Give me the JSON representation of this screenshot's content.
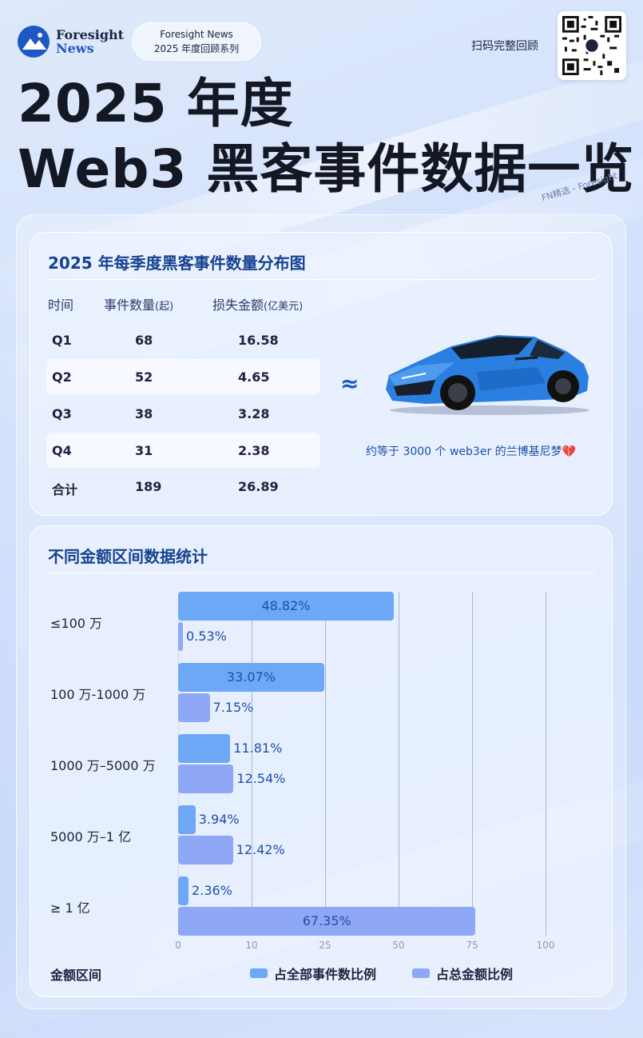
{
  "header": {
    "brand_line1": "Foresight",
    "brand_line2": "News",
    "series_line1": "Foresight News",
    "series_line2": "2025 年度回顾系列",
    "scan_text": "扫码完整回顾",
    "title_line1": "2025 年度",
    "title_line2": "Web3 黑客事件数据一览",
    "watermark": "FN精选 - Foresight"
  },
  "colors": {
    "accent": "#1e58c4",
    "title_blue": "#16428f",
    "series1": "#6da8f7",
    "series2": "#8fa8f5"
  },
  "quarterly": {
    "title": "2025 年每季度黑客事件数量分布图",
    "headers": {
      "time": "时间",
      "count": "事件数量",
      "count_unit": "(起)",
      "loss": "损失金额",
      "loss_unit": "(亿美元)"
    },
    "rows": [
      {
        "q": "Q1",
        "count": "68",
        "loss": "16.58"
      },
      {
        "q": "Q2",
        "count": "52",
        "loss": "4.65"
      },
      {
        "q": "Q3",
        "count": "38",
        "loss": "3.28"
      },
      {
        "q": "Q4",
        "count": "31",
        "loss": "2.38"
      },
      {
        "q": "合计",
        "count": "189",
        "loss": "26.89"
      }
    ],
    "approx_symbol": "≈",
    "car_caption": "约等于 3000 个 web3er 的兰博基尼梦",
    "caption_icon": "broken-heart-icon"
  },
  "chart_data": {
    "type": "bar",
    "orientation": "horizontal",
    "title": "不同金额区间数据统计",
    "categories": [
      "≤100 万",
      "100 万-1000 万",
      "1000 万–5000 万",
      "5000 万–1 亿",
      "≥ 1 亿"
    ],
    "series": [
      {
        "name": "占全部事件数比例",
        "values": [
          48.82,
          33.07,
          11.81,
          3.94,
          2.36
        ]
      },
      {
        "name": "占总金额比例",
        "values": [
          0.53,
          7.15,
          12.54,
          12.42,
          67.35
        ]
      }
    ],
    "value_labels": [
      [
        "48.82%",
        "33.07%",
        "11.81%",
        "3.94%",
        "2.36%"
      ],
      [
        "0.53%",
        "7.15%",
        "12.54%",
        "12.42%",
        "67.35%"
      ]
    ],
    "xticks": [
      "0",
      "10",
      "25",
      "50",
      "75",
      "100"
    ],
    "xtick_values": [
      0,
      10,
      25,
      50,
      75,
      100
    ],
    "ylabel": "金额区间",
    "legend_position": "bottom-right",
    "grid": true
  }
}
